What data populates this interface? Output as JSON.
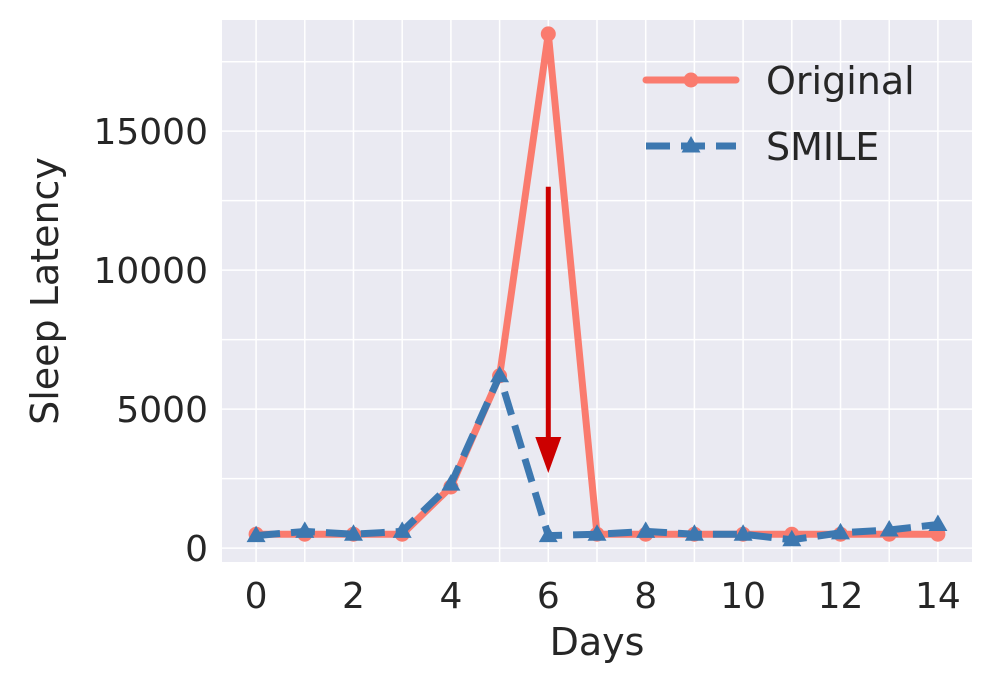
{
  "chart_data": {
    "type": "line",
    "title": "",
    "xlabel": "Days",
    "ylabel": "Sleep Latency",
    "xlim": [
      -0.7,
      14.7
    ],
    "ylim": [
      -500,
      19000
    ],
    "xticks": [
      0,
      2,
      4,
      6,
      8,
      10,
      12,
      14
    ],
    "yticks": [
      0,
      5000,
      10000,
      15000
    ],
    "xtick_labels": [
      "0",
      "2",
      "4",
      "6",
      "8",
      "10",
      "12",
      "14"
    ],
    "ytick_labels": [
      "0",
      "5000",
      "10000",
      "15000"
    ],
    "grid": true,
    "legend_position": "top-right",
    "x": [
      0,
      1,
      2,
      3,
      4,
      5,
      6,
      7,
      8,
      9,
      10,
      11,
      12,
      13,
      14
    ],
    "series": [
      {
        "name": "Original",
        "color": "#fa7b6e",
        "style": "solid",
        "marker": "circle",
        "values": [
          500,
          500,
          500,
          500,
          2200,
          6200,
          18500,
          500,
          500,
          500,
          500,
          500,
          500,
          500,
          500
        ]
      },
      {
        "name": "SMILE",
        "color": "#3d78b0",
        "style": "dashed",
        "marker": "triangle",
        "values": [
          450,
          600,
          500,
          600,
          2300,
          6200,
          450,
          500,
          600,
          500,
          500,
          300,
          550,
          650,
          850
        ]
      }
    ],
    "annotations": [
      {
        "type": "arrow",
        "color": "#cc0000",
        "x": 6,
        "y_from": 13000,
        "y_to": 2700
      }
    ]
  }
}
